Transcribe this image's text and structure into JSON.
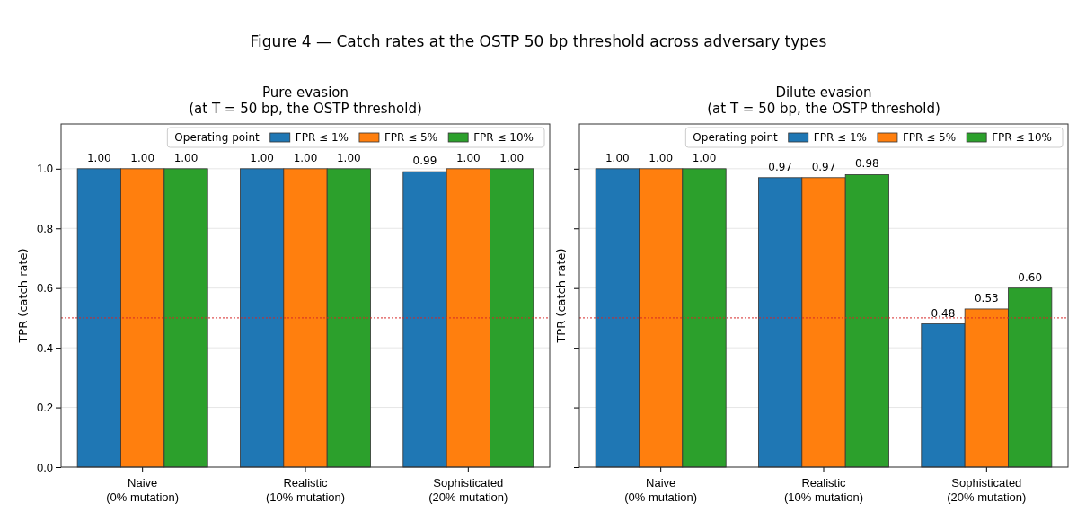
{
  "chart_data": [
    {
      "type": "bar",
      "title": "Figure 4 — Catch rates at the OSTP 50 bp threshold across adversary types",
      "subtitle": "Pure evasion\n(at T = 50 bp, the OSTP threshold)",
      "ylabel": "TPR (catch rate)",
      "categories": [
        "Naive\n(0% mutation)",
        "Realistic\n(10% mutation)",
        "Sophisticated\n(20% mutation)"
      ],
      "series": [
        {
          "name": "FPR ≤ 1%",
          "color": "#1f77b4",
          "values": [
            1.0,
            1.0,
            0.99
          ],
          "value_labels": [
            "1.00",
            "1.00",
            "0.99"
          ]
        },
        {
          "name": "FPR ≤ 5%",
          "color": "#ff7f0e",
          "values": [
            1.0,
            1.0,
            1.0
          ],
          "value_labels": [
            "1.00",
            "1.00",
            "1.00"
          ]
        },
        {
          "name": "FPR ≤ 10%",
          "color": "#2ca02c",
          "values": [
            1.0,
            1.0,
            1.0
          ],
          "value_labels": [
            "1.00",
            "1.00",
            "1.00"
          ]
        }
      ],
      "legend_title": "Operating point",
      "legend": "top right",
      "ylim": [
        0,
        1.15
      ],
      "yticks": [
        {
          "value": 0,
          "label": "0.0"
        },
        {
          "value": 0.2,
          "label": "0.2"
        },
        {
          "value": 0.4,
          "label": "0.4"
        },
        {
          "value": 0.6,
          "label": "0.6"
        },
        {
          "value": 0.8,
          "label": "0.8"
        },
        {
          "value": 1,
          "label": "1.0"
        }
      ],
      "grid": "y",
      "ref_lines": [
        {
          "axis": "y",
          "value": 0.5,
          "color": "#d62728",
          "line_style": "dotted"
        }
      ]
    },
    {
      "type": "bar",
      "subtitle": "Dilute evasion\n(at T = 50 bp, the OSTP threshold)",
      "ylabel": "TPR (catch rate)",
      "categories": [
        "Naive\n(0% mutation)",
        "Realistic\n(10% mutation)",
        "Sophisticated\n(20% mutation)"
      ],
      "series": [
        {
          "name": "FPR ≤ 1%",
          "color": "#1f77b4",
          "values": [
            1.0,
            0.97,
            0.48
          ],
          "value_labels": [
            "1.00",
            "0.97",
            "0.48"
          ]
        },
        {
          "name": "FPR ≤ 5%",
          "color": "#ff7f0e",
          "values": [
            1.0,
            0.97,
            0.53
          ],
          "value_labels": [
            "1.00",
            "0.97",
            "0.53"
          ]
        },
        {
          "name": "FPR ≤ 10%",
          "color": "#2ca02c",
          "values": [
            1.0,
            0.98,
            0.6
          ],
          "value_labels": [
            "1.00",
            "0.98",
            "0.60"
          ]
        }
      ],
      "legend_title": "Operating point",
      "legend": "top right",
      "ylim": [
        0,
        1.15
      ],
      "yticks": [
        {
          "value": 0,
          "label": null
        },
        {
          "value": 0.2,
          "label": null
        },
        {
          "value": 0.4,
          "label": null
        },
        {
          "value": 0.6,
          "label": null
        },
        {
          "value": 0.8,
          "label": null
        },
        {
          "value": 1,
          "label": null
        }
      ],
      "grid": "y",
      "tick_labels": "x",
      "ref_lines": [
        {
          "axis": "y",
          "value": 0.5,
          "color": "#d62728",
          "line_style": "dotted"
        }
      ]
    }
  ]
}
